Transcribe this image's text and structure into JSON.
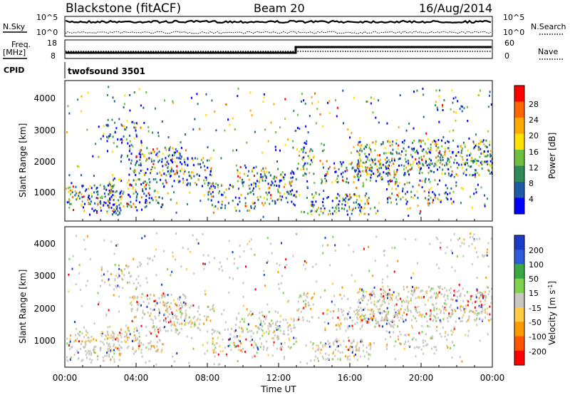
{
  "header": {
    "station": "Blackstone (fitACF)",
    "beam": "Beam 20",
    "date": "16/Aug/2014"
  },
  "top_panels": {
    "nsky_label": "N.Sky",
    "nsky_ticks": [
      "10^5",
      "10^0"
    ],
    "nsearch_label": "N.Search",
    "nsearch_ticks": [
      "10^5",
      "10^0"
    ],
    "freq_label_line1": "Freq.",
    "freq_label_line2": "[MHz]",
    "freq_ticks": [
      "18",
      "8"
    ],
    "nave_label": "Nave",
    "nave_ticks": [
      "60",
      "0"
    ],
    "cpid_label": "CPID",
    "cpid_value": "twofsound 3501"
  },
  "chart_data": [
    {
      "type": "heatmap",
      "name": "power",
      "ylabel": "Slant Range [km]",
      "yticks": [
        "1000",
        "2000",
        "3000",
        "4000"
      ],
      "ylim": [
        180,
        4500
      ],
      "colorbar_label": "Power [dB]",
      "colorbar_ticks": [
        "28",
        "24",
        "20",
        "16",
        "12",
        "8",
        "4"
      ],
      "colorbar_colors": [
        "#ff0000",
        "#ff6600",
        "#ffaa00",
        "#ffe000",
        "#70c040",
        "#2e8b57",
        "#1e5aa8",
        "#0000ff"
      ]
    },
    {
      "type": "heatmap",
      "name": "velocity",
      "ylabel": "Slant Range [km]",
      "yticks": [
        "1000",
        "2000",
        "3000",
        "4000"
      ],
      "ylim": [
        180,
        4500
      ],
      "colorbar_label": "Velocity [m s",
      "colorbar_label_sup": "-1",
      "colorbar_ticks": [
        "200",
        "100",
        "50",
        "15",
        "-15",
        "-50",
        "-100",
        "-200"
      ],
      "colorbar_colors": [
        "#1a3cc8",
        "#2e5bd8",
        "#39a845",
        "#7fd34e",
        "#c8c8c0",
        "#ffcc44",
        "#ff9900",
        "#ff5500",
        "#ff0000"
      ]
    }
  ],
  "xaxis": {
    "ticks": [
      "00:00",
      "04:00",
      "08:00",
      "12:00",
      "16:00",
      "20:00",
      "00:00"
    ],
    "label": "Time UT"
  }
}
